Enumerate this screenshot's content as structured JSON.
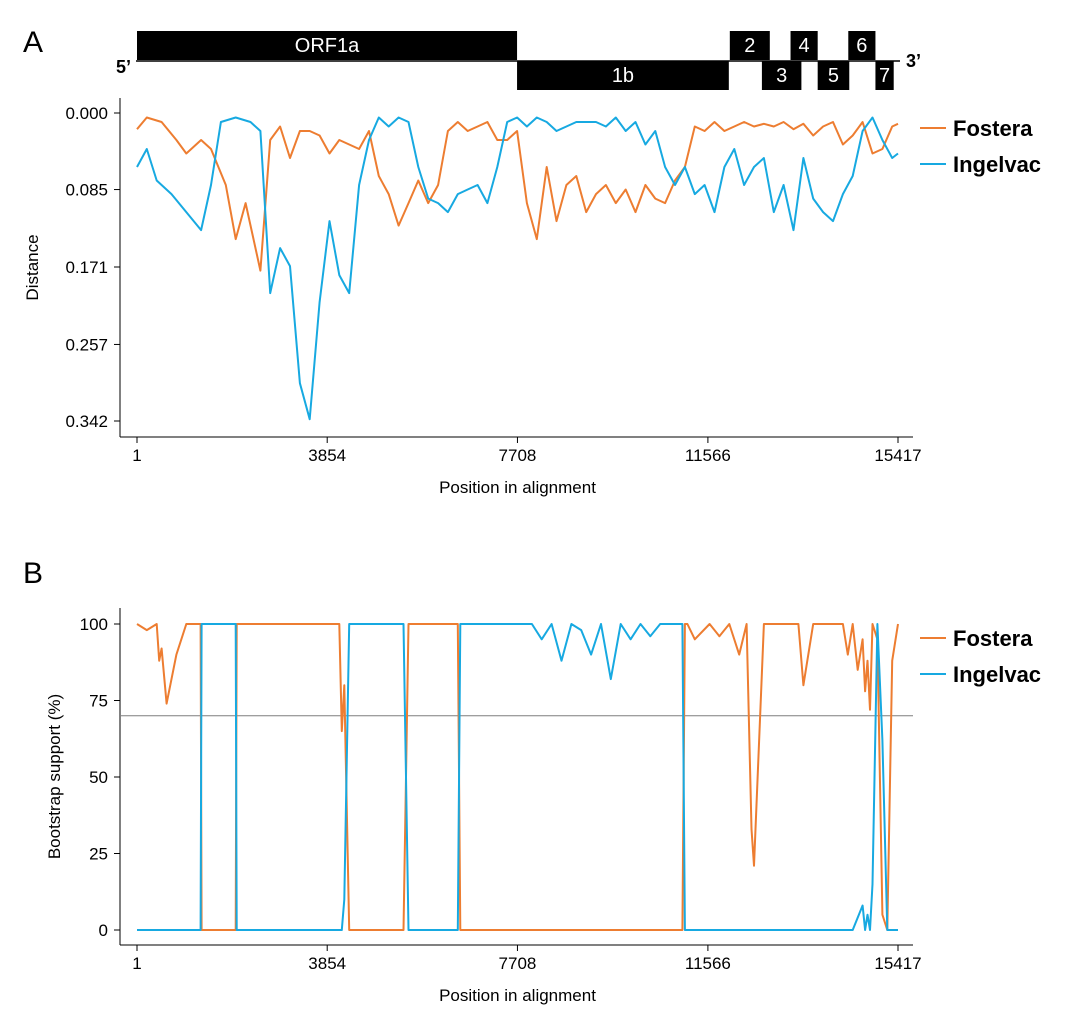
{
  "panel_a_letter": "A",
  "panel_b_letter": "B",
  "genome": {
    "five_prime": "5’",
    "three_prime": "3’",
    "orfs": [
      {
        "label": "ORF1a",
        "start": 1,
        "end": 7700,
        "row": "top"
      },
      {
        "label": "1b",
        "start": 7700,
        "end": 11990,
        "row": "bottom"
      },
      {
        "label": "2",
        "start": 12010,
        "end": 12820,
        "row": "top"
      },
      {
        "label": "3",
        "start": 12660,
        "end": 13460,
        "row": "bottom"
      },
      {
        "label": "4",
        "start": 13240,
        "end": 13790,
        "row": "top"
      },
      {
        "label": "5",
        "start": 13790,
        "end": 14430,
        "row": "bottom"
      },
      {
        "label": "6",
        "start": 14410,
        "end": 14960,
        "row": "top"
      },
      {
        "label": "7",
        "start": 14960,
        "end": 15330,
        "row": "bottom"
      }
    ]
  },
  "legend": [
    {
      "name": "Fostera",
      "color": "#ed7d31"
    },
    {
      "name": "Ingelvac",
      "color": "#17a9e1"
    }
  ],
  "chart_data": [
    {
      "type": "line",
      "panel": "A",
      "xlabel": "Position in alignment",
      "ylabel": "Distance",
      "x_ticks": [
        1,
        3854,
        7708,
        11566,
        15417
      ],
      "y_ticks": [
        "0.000",
        "0.085",
        "0.171",
        "0.257",
        "0.342"
      ],
      "xlim": [
        1,
        15417
      ],
      "ylim": [
        0.342,
        0.0
      ],
      "y_inverted": true,
      "series": [
        {
          "name": "Fostera",
          "color": "#ed7d31",
          "x": [
            1,
            200,
            500,
            800,
            1000,
            1300,
            1500,
            1800,
            2000,
            2200,
            2500,
            2700,
            2900,
            3100,
            3300,
            3500,
            3700,
            3900,
            4100,
            4300,
            4500,
            4700,
            4900,
            5100,
            5300,
            5500,
            5700,
            5900,
            6100,
            6300,
            6500,
            6700,
            6900,
            7100,
            7300,
            7500,
            7700,
            7900,
            8100,
            8300,
            8500,
            8700,
            8900,
            9100,
            9300,
            9500,
            9700,
            9900,
            10100,
            10300,
            10500,
            10700,
            10900,
            11100,
            11300,
            11500,
            11700,
            11900,
            12100,
            12300,
            12500,
            12700,
            12900,
            13100,
            13300,
            13500,
            13700,
            13900,
            14100,
            14300,
            14500,
            14700,
            14900,
            15100,
            15300,
            15417
          ],
          "y": [
            0.018,
            0.005,
            0.01,
            0.03,
            0.045,
            0.03,
            0.04,
            0.08,
            0.14,
            0.1,
            0.175,
            0.03,
            0.015,
            0.05,
            0.02,
            0.02,
            0.025,
            0.045,
            0.03,
            0.035,
            0.04,
            0.02,
            0.07,
            0.09,
            0.125,
            0.1,
            0.075,
            0.1,
            0.08,
            0.02,
            0.01,
            0.02,
            0.015,
            0.01,
            0.03,
            0.03,
            0.02,
            0.1,
            0.14,
            0.06,
            0.12,
            0.08,
            0.07,
            0.11,
            0.09,
            0.08,
            0.1,
            0.085,
            0.11,
            0.08,
            0.095,
            0.1,
            0.075,
            0.06,
            0.015,
            0.02,
            0.01,
            0.02,
            0.015,
            0.01,
            0.015,
            0.012,
            0.015,
            0.01,
            0.018,
            0.012,
            0.025,
            0.015,
            0.01,
            0.035,
            0.025,
            0.01,
            0.045,
            0.04,
            0.015,
            0.012
          ]
        },
        {
          "name": "Ingelvac",
          "color": "#17a9e1",
          "x": [
            1,
            200,
            400,
            700,
            1000,
            1300,
            1500,
            1700,
            2000,
            2300,
            2500,
            2700,
            2900,
            3100,
            3300,
            3500,
            3700,
            3900,
            4100,
            4300,
            4500,
            4700,
            4900,
            5100,
            5300,
            5500,
            5700,
            5900,
            6100,
            6300,
            6500,
            6700,
            6900,
            7100,
            7300,
            7500,
            7700,
            7900,
            8100,
            8300,
            8500,
            8700,
            8900,
            9100,
            9300,
            9500,
            9700,
            9900,
            10100,
            10300,
            10500,
            10700,
            10900,
            11100,
            11300,
            11500,
            11700,
            11900,
            12100,
            12300,
            12500,
            12700,
            12900,
            13100,
            13300,
            13500,
            13700,
            13900,
            14100,
            14300,
            14500,
            14700,
            14900,
            15100,
            15300,
            15417
          ],
          "y": [
            0.06,
            0.04,
            0.075,
            0.09,
            0.11,
            0.13,
            0.08,
            0.01,
            0.005,
            0.01,
            0.02,
            0.2,
            0.15,
            0.17,
            0.3,
            0.34,
            0.21,
            0.12,
            0.18,
            0.2,
            0.08,
            0.03,
            0.005,
            0.015,
            0.005,
            0.01,
            0.06,
            0.095,
            0.1,
            0.11,
            0.09,
            0.085,
            0.08,
            0.1,
            0.06,
            0.01,
            0.005,
            0.015,
            0.005,
            0.01,
            0.02,
            0.015,
            0.01,
            0.01,
            0.01,
            0.015,
            0.005,
            0.02,
            0.01,
            0.035,
            0.02,
            0.06,
            0.08,
            0.06,
            0.09,
            0.08,
            0.11,
            0.06,
            0.04,
            0.08,
            0.06,
            0.05,
            0.11,
            0.08,
            0.13,
            0.05,
            0.095,
            0.11,
            0.12,
            0.09,
            0.07,
            0.02,
            0.005,
            0.03,
            0.05,
            0.045
          ]
        }
      ]
    },
    {
      "type": "line",
      "panel": "B",
      "xlabel": "Position in alignment",
      "ylabel": "Bootstrap support (%)",
      "x_ticks": [
        1,
        3854,
        7708,
        11566,
        15417
      ],
      "y_ticks": [
        0,
        25,
        50,
        75,
        100
      ],
      "xlim": [
        1,
        15417
      ],
      "ylim": [
        0,
        100
      ],
      "threshold": 70,
      "series": [
        {
          "name": "Fostera",
          "color": "#ed7d31",
          "x": [
            1,
            200,
            400,
            450,
            500,
            600,
            800,
            1000,
            1200,
            1290,
            1310,
            2000,
            2020,
            2200,
            3000,
            4000,
            4100,
            4150,
            4200,
            4300,
            4350,
            4400,
            5400,
            5500,
            5550,
            6400,
            6500,
            6550,
            6700,
            7000,
            8000,
            9000,
            10000,
            11000,
            11050,
            11100,
            11150,
            11300,
            11600,
            11800,
            12000,
            12200,
            12350,
            12450,
            12500,
            12700,
            13000,
            13400,
            13500,
            13700,
            14000,
            14300,
            14400,
            14500,
            14600,
            14700,
            14750,
            14800,
            14850,
            14900,
            15000,
            15100,
            15200,
            15300,
            15417
          ],
          "y": [
            100,
            98,
            100,
            88,
            92,
            74,
            90,
            100,
            100,
            100,
            0,
            0,
            100,
            100,
            100,
            100,
            100,
            65,
            80,
            0,
            0,
            0,
            0,
            100,
            100,
            100,
            100,
            0,
            0,
            0,
            0,
            0,
            0,
            0,
            0,
            100,
            100,
            95,
            100,
            96,
            100,
            90,
            100,
            33,
            21,
            100,
            100,
            100,
            80,
            100,
            100,
            100,
            90,
            100,
            85,
            95,
            78,
            88,
            72,
            100,
            95,
            5,
            0,
            88,
            100
          ]
        },
        {
          "name": "Ingelvac",
          "color": "#17a9e1",
          "x": [
            1,
            1000,
            1290,
            1310,
            2000,
            2020,
            4100,
            4150,
            4200,
            4300,
            4350,
            4400,
            5400,
            5500,
            5550,
            6400,
            6500,
            6550,
            6700,
            7000,
            8000,
            8200,
            8400,
            8600,
            8800,
            9000,
            9200,
            9400,
            9600,
            9800,
            10000,
            10200,
            10400,
            10600,
            11000,
            11050,
            11100,
            11150,
            11300,
            11600,
            12000,
            12400,
            13000,
            13500,
            14000,
            14500,
            14700,
            14750,
            14800,
            14850,
            14900,
            15000,
            15100,
            15200,
            15300,
            15417
          ],
          "y": [
            0,
            0,
            0,
            100,
            100,
            0,
            0,
            0,
            10,
            100,
            100,
            100,
            100,
            0,
            0,
            0,
            0,
            100,
            100,
            100,
            100,
            95,
            100,
            88,
            100,
            98,
            90,
            100,
            82,
            100,
            95,
            100,
            96,
            100,
            100,
            100,
            0,
            0,
            0,
            0,
            0,
            0,
            0,
            0,
            0,
            0,
            8,
            0,
            5,
            0,
            15,
            100,
            62,
            0,
            0,
            0
          ]
        }
      ]
    }
  ]
}
